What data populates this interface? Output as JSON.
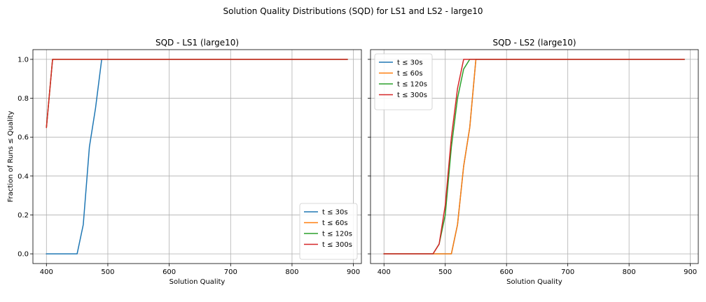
{
  "figure": {
    "suptitle": "Solution Quality Distributions (SQD) for LS1 and LS2 - large10"
  },
  "chart_data": [
    {
      "type": "line",
      "title": "SQD - LS1 (large10)",
      "xlabel": "Solution Quality",
      "ylabel": "Fraction of Runs ≤ Quality",
      "xlim": [
        378,
        913
      ],
      "ylim": [
        -0.05,
        1.05
      ],
      "xticks": [
        400,
        500,
        600,
        700,
        800,
        900
      ],
      "yticks": [
        0.0,
        0.2,
        0.4,
        0.6,
        0.8,
        1.0
      ],
      "grid": true,
      "legend_position": "lower right",
      "series": [
        {
          "name": "t ≤ 30s",
          "color": "#1f77b4",
          "x": [
            400,
            410,
            420,
            430,
            440,
            450,
            460,
            470,
            480,
            490,
            890
          ],
          "y": [
            0.0,
            0.0,
            0.0,
            0.0,
            0.0,
            0.0,
            0.15,
            0.55,
            0.75,
            1.0,
            1.0
          ]
        },
        {
          "name": "t ≤ 60s",
          "color": "#ff7f0e",
          "x": [
            400,
            410,
            890
          ],
          "y": [
            0.65,
            1.0,
            1.0
          ]
        },
        {
          "name": "t ≤ 120s",
          "color": "#2ca02c",
          "x": [
            400,
            410,
            890
          ],
          "y": [
            0.65,
            1.0,
            1.0
          ]
        },
        {
          "name": "t ≤ 300s",
          "color": "#d62728",
          "x": [
            400,
            410,
            890
          ],
          "y": [
            0.65,
            1.0,
            1.0
          ]
        }
      ]
    },
    {
      "type": "line",
      "title": "SQD - LS2 (large10)",
      "xlabel": "Solution Quality",
      "ylabel": "",
      "xlim": [
        378,
        913
      ],
      "ylim": [
        -0.05,
        1.05
      ],
      "xticks": [
        400,
        500,
        600,
        700,
        800,
        900
      ],
      "yticks": [
        0.0,
        0.2,
        0.4,
        0.6,
        0.8,
        1.0
      ],
      "grid": true,
      "legend_position": "upper left",
      "series": [
        {
          "name": "t ≤ 30s",
          "color": "#1f77b4",
          "x": [
            400,
            480,
            490,
            500,
            510,
            520,
            530,
            540,
            550,
            890
          ],
          "y": [
            0.0,
            0.0,
            0.0,
            0.0,
            0.0,
            0.15,
            0.45,
            0.65,
            1.0,
            1.0
          ]
        },
        {
          "name": "t ≤ 60s",
          "color": "#ff7f0e",
          "x": [
            400,
            480,
            490,
            500,
            510,
            520,
            530,
            540,
            550,
            890
          ],
          "y": [
            0.0,
            0.0,
            0.0,
            0.0,
            0.0,
            0.15,
            0.45,
            0.65,
            1.0,
            1.0
          ]
        },
        {
          "name": "t ≤ 120s",
          "color": "#2ca02c",
          "x": [
            400,
            480,
            490,
            500,
            510,
            520,
            530,
            540,
            550,
            890
          ],
          "y": [
            0.0,
            0.0,
            0.05,
            0.2,
            0.55,
            0.8,
            0.95,
            1.0,
            1.0,
            1.0
          ]
        },
        {
          "name": "t ≤ 300s",
          "color": "#d62728",
          "x": [
            400,
            480,
            490,
            500,
            510,
            520,
            530,
            540,
            550,
            890
          ],
          "y": [
            0.0,
            0.0,
            0.05,
            0.25,
            0.6,
            0.85,
            1.0,
            1.0,
            1.0,
            1.0
          ]
        }
      ]
    }
  ]
}
